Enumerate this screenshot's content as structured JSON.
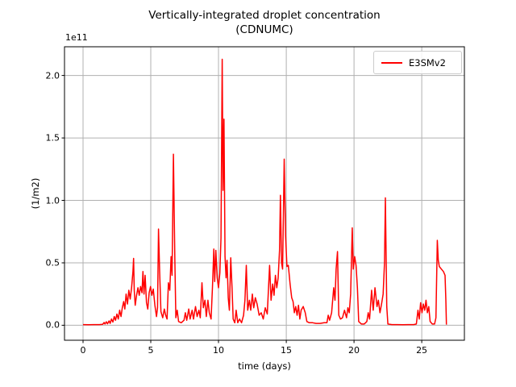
{
  "chart_data": {
    "type": "line",
    "title": "Vertically-integrated droplet concentration (CDNUMC)",
    "title_line1": "Vertically-integrated droplet concentration",
    "title_line2": "(CDNUMC)",
    "xlabel": "time (days)",
    "ylabel": "(1/m2)",
    "y_offset_label": "1e11",
    "y_scale_factor": 100000000000.0,
    "xlim": [
      -1.37,
      28.15
    ],
    "ylim": [
      -0.12,
      2.23
    ],
    "xticks": [
      0,
      5,
      10,
      15,
      20,
      25
    ],
    "yticks": [
      0.0,
      0.5,
      1.0,
      1.5,
      2.0
    ],
    "xtick_labels": [
      "0",
      "5",
      "10",
      "15",
      "20",
      "25"
    ],
    "ytick_labels": [
      "0.0",
      "0.5",
      "1.0",
      "1.5",
      "2.0"
    ],
    "grid": true,
    "grid_color": "#b0b0b0",
    "spine_color": "#000000",
    "legend_position": "upper right",
    "series": [
      {
        "name": "E3SMv2",
        "color": "#ff0000",
        "units": "1/m2 (values in 1e11)",
        "points": [
          [
            0,
            0.005
          ],
          [
            0.4,
            0.004
          ],
          [
            0.8,
            0.005
          ],
          [
            1.2,
            0.005
          ],
          [
            1.45,
            0.008
          ],
          [
            1.55,
            0.022
          ],
          [
            1.62,
            0.01
          ],
          [
            1.72,
            0.028
          ],
          [
            1.8,
            0.012
          ],
          [
            1.92,
            0.035
          ],
          [
            2.0,
            0.015
          ],
          [
            2.1,
            0.05
          ],
          [
            2.2,
            0.025
          ],
          [
            2.3,
            0.07
          ],
          [
            2.4,
            0.04
          ],
          [
            2.5,
            0.09
          ],
          [
            2.6,
            0.05
          ],
          [
            2.7,
            0.12
          ],
          [
            2.8,
            0.07
          ],
          [
            2.9,
            0.14
          ],
          [
            3.0,
            0.19
          ],
          [
            3.08,
            0.13
          ],
          [
            3.18,
            0.25
          ],
          [
            3.28,
            0.17
          ],
          [
            3.38,
            0.28
          ],
          [
            3.48,
            0.21
          ],
          [
            3.58,
            0.3
          ],
          [
            3.68,
            0.43
          ],
          [
            3.73,
            0.535
          ],
          [
            3.78,
            0.28
          ],
          [
            3.85,
            0.16
          ],
          [
            3.95,
            0.24
          ],
          [
            4.05,
            0.3
          ],
          [
            4.15,
            0.24
          ],
          [
            4.25,
            0.31
          ],
          [
            4.35,
            0.26
          ],
          [
            4.42,
            0.43
          ],
          [
            4.5,
            0.25
          ],
          [
            4.58,
            0.4
          ],
          [
            4.68,
            0.18
          ],
          [
            4.78,
            0.13
          ],
          [
            4.88,
            0.26
          ],
          [
            4.98,
            0.31
          ],
          [
            5.08,
            0.24
          ],
          [
            5.18,
            0.29
          ],
          [
            5.3,
            0.16
          ],
          [
            5.42,
            0.07
          ],
          [
            5.5,
            0.14
          ],
          [
            5.57,
            0.77
          ],
          [
            5.65,
            0.43
          ],
          [
            5.75,
            0.11
          ],
          [
            5.88,
            0.06
          ],
          [
            6.0,
            0.13
          ],
          [
            6.1,
            0.08
          ],
          [
            6.2,
            0.05
          ],
          [
            6.3,
            0.34
          ],
          [
            6.4,
            0.28
          ],
          [
            6.5,
            0.55
          ],
          [
            6.57,
            0.4
          ],
          [
            6.67,
            1.37
          ],
          [
            6.77,
            0.55
          ],
          [
            6.85,
            0.06
          ],
          [
            6.95,
            0.12
          ],
          [
            7.05,
            0.03
          ],
          [
            7.25,
            0.02
          ],
          [
            7.45,
            0.04
          ],
          [
            7.55,
            0.1
          ],
          [
            7.65,
            0.04
          ],
          [
            7.8,
            0.13
          ],
          [
            7.9,
            0.05
          ],
          [
            8.05,
            0.12
          ],
          [
            8.15,
            0.05
          ],
          [
            8.3,
            0.15
          ],
          [
            8.42,
            0.07
          ],
          [
            8.55,
            0.12
          ],
          [
            8.65,
            0.06
          ],
          [
            8.78,
            0.34
          ],
          [
            8.88,
            0.14
          ],
          [
            9.0,
            0.2
          ],
          [
            9.1,
            0.07
          ],
          [
            9.22,
            0.2
          ],
          [
            9.32,
            0.1
          ],
          [
            9.45,
            0.05
          ],
          [
            9.55,
            0.3
          ],
          [
            9.65,
            0.61
          ],
          [
            9.72,
            0.35
          ],
          [
            9.8,
            0.6
          ],
          [
            9.9,
            0.38
          ],
          [
            10.0,
            0.3
          ],
          [
            10.1,
            0.42
          ],
          [
            10.18,
            0.7
          ],
          [
            10.27,
            2.13
          ],
          [
            10.33,
            1.08
          ],
          [
            10.4,
            1.65
          ],
          [
            10.48,
            0.55
          ],
          [
            10.56,
            0.38
          ],
          [
            10.63,
            0.52
          ],
          [
            10.72,
            0.22
          ],
          [
            10.8,
            0.12
          ],
          [
            10.9,
            0.54
          ],
          [
            11.0,
            0.3
          ],
          [
            11.08,
            0.05
          ],
          [
            11.2,
            0.02
          ],
          [
            11.3,
            0.12
          ],
          [
            11.42,
            0.02
          ],
          [
            11.55,
            0.05
          ],
          [
            11.7,
            0.02
          ],
          [
            11.85,
            0.08
          ],
          [
            11.95,
            0.2
          ],
          [
            12.05,
            0.48
          ],
          [
            12.15,
            0.12
          ],
          [
            12.28,
            0.2
          ],
          [
            12.38,
            0.12
          ],
          [
            12.5,
            0.25
          ],
          [
            12.6,
            0.14
          ],
          [
            12.72,
            0.22
          ],
          [
            12.85,
            0.17
          ],
          [
            13.0,
            0.08
          ],
          [
            13.15,
            0.1
          ],
          [
            13.3,
            0.05
          ],
          [
            13.45,
            0.14
          ],
          [
            13.6,
            0.09
          ],
          [
            13.77,
            0.48
          ],
          [
            13.88,
            0.2
          ],
          [
            14.0,
            0.33
          ],
          [
            14.1,
            0.24
          ],
          [
            14.2,
            0.4
          ],
          [
            14.3,
            0.3
          ],
          [
            14.4,
            0.38
          ],
          [
            14.5,
            0.6
          ],
          [
            14.57,
            1.04
          ],
          [
            14.65,
            0.5
          ],
          [
            14.73,
            0.45
          ],
          [
            14.85,
            1.33
          ],
          [
            14.95,
            0.72
          ],
          [
            15.05,
            0.47
          ],
          [
            15.15,
            0.48
          ],
          [
            15.28,
            0.33
          ],
          [
            15.4,
            0.22
          ],
          [
            15.5,
            0.19
          ],
          [
            15.6,
            0.1
          ],
          [
            15.7,
            0.15
          ],
          [
            15.8,
            0.08
          ],
          [
            15.9,
            0.16
          ],
          [
            16.0,
            0.05
          ],
          [
            16.1,
            0.12
          ],
          [
            16.25,
            0.15
          ],
          [
            16.4,
            0.1
          ],
          [
            16.52,
            0.03
          ],
          [
            16.7,
            0.02
          ],
          [
            16.95,
            0.02
          ],
          [
            17.2,
            0.015
          ],
          [
            17.5,
            0.015
          ],
          [
            17.8,
            0.02
          ],
          [
            18.0,
            0.02
          ],
          [
            18.1,
            0.08
          ],
          [
            18.2,
            0.04
          ],
          [
            18.35,
            0.1
          ],
          [
            18.5,
            0.3
          ],
          [
            18.6,
            0.2
          ],
          [
            18.68,
            0.45
          ],
          [
            18.78,
            0.59
          ],
          [
            18.88,
            0.08
          ],
          [
            19.0,
            0.05
          ],
          [
            19.15,
            0.06
          ],
          [
            19.3,
            0.12
          ],
          [
            19.45,
            0.06
          ],
          [
            19.55,
            0.14
          ],
          [
            19.65,
            0.1
          ],
          [
            19.75,
            0.25
          ],
          [
            19.87,
            0.78
          ],
          [
            19.95,
            0.45
          ],
          [
            20.05,
            0.55
          ],
          [
            20.15,
            0.48
          ],
          [
            20.25,
            0.3
          ],
          [
            20.35,
            0.03
          ],
          [
            20.55,
            0.01
          ],
          [
            20.75,
            0.01
          ],
          [
            20.95,
            0.03
          ],
          [
            21.05,
            0.1
          ],
          [
            21.15,
            0.05
          ],
          [
            21.3,
            0.28
          ],
          [
            21.42,
            0.12
          ],
          [
            21.55,
            0.3
          ],
          [
            21.7,
            0.15
          ],
          [
            21.8,
            0.2
          ],
          [
            21.92,
            0.1
          ],
          [
            22.05,
            0.18
          ],
          [
            22.15,
            0.25
          ],
          [
            22.25,
            0.5
          ],
          [
            22.32,
            1.02
          ],
          [
            22.42,
            0.15
          ],
          [
            22.5,
            0.01
          ],
          [
            22.8,
            0.005
          ],
          [
            23.2,
            0.005
          ],
          [
            23.6,
            0.004
          ],
          [
            24.0,
            0.005
          ],
          [
            24.4,
            0.005
          ],
          [
            24.6,
            0.01
          ],
          [
            24.72,
            0.12
          ],
          [
            24.82,
            0.05
          ],
          [
            24.92,
            0.18
          ],
          [
            25.02,
            0.1
          ],
          [
            25.12,
            0.17
          ],
          [
            25.22,
            0.12
          ],
          [
            25.32,
            0.2
          ],
          [
            25.42,
            0.1
          ],
          [
            25.52,
            0.15
          ],
          [
            25.62,
            0.03
          ],
          [
            25.78,
            0.01
          ],
          [
            25.95,
            0.01
          ],
          [
            26.05,
            0.06
          ],
          [
            26.15,
            0.68
          ],
          [
            26.22,
            0.52
          ],
          [
            26.3,
            0.47
          ],
          [
            26.45,
            0.45
          ],
          [
            26.6,
            0.43
          ],
          [
            26.72,
            0.4
          ],
          [
            26.78,
            0.2
          ],
          [
            26.82,
            0.005
          ]
        ]
      }
    ]
  },
  "legend": {
    "entries": [
      {
        "label": "E3SMv2",
        "color": "#ff0000"
      }
    ]
  }
}
